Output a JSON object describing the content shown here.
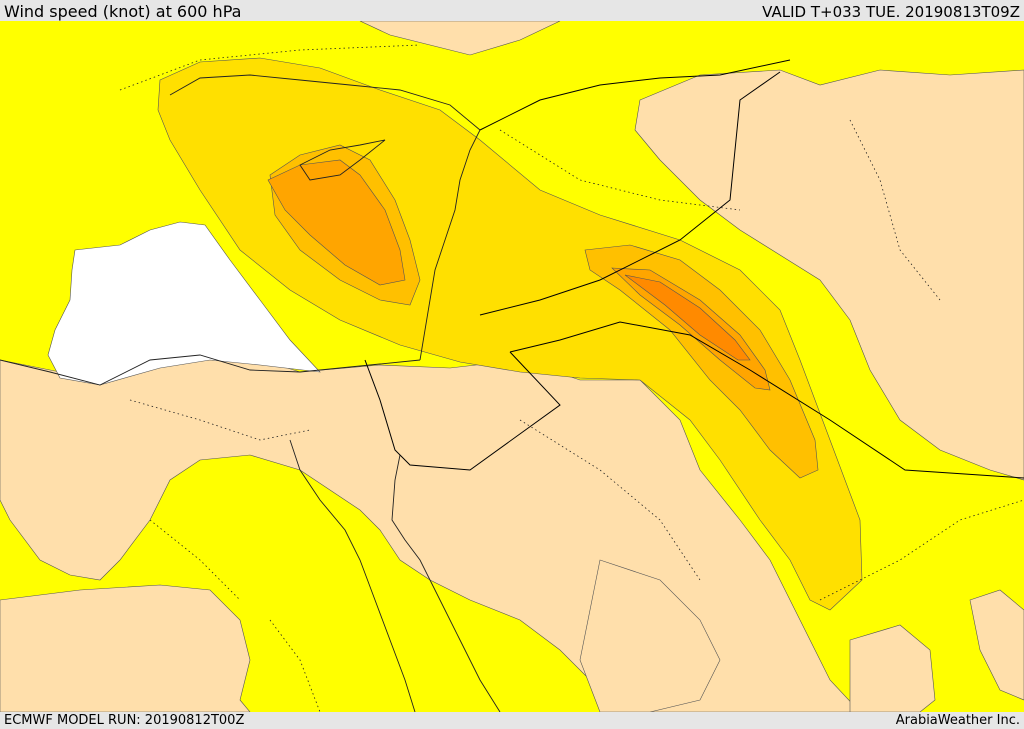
{
  "header": {
    "title": "Wind speed (knot) at 600 hPa",
    "valid": "VALID T+033 TUE. 20190813T09Z"
  },
  "footer": {
    "run": "ECMWF MODEL RUN: 20190812T00Z",
    "credit": "ArabiaWeather Inc."
  },
  "legend_colors": {
    "weakest": "#ffffff",
    "light": "#ffdfab",
    "moderate": "#ffff00",
    "fresh": "#ffe000",
    "strong": "#ffc000",
    "stronger": "#ffa500",
    "strongest": "#ff8a00"
  }
}
